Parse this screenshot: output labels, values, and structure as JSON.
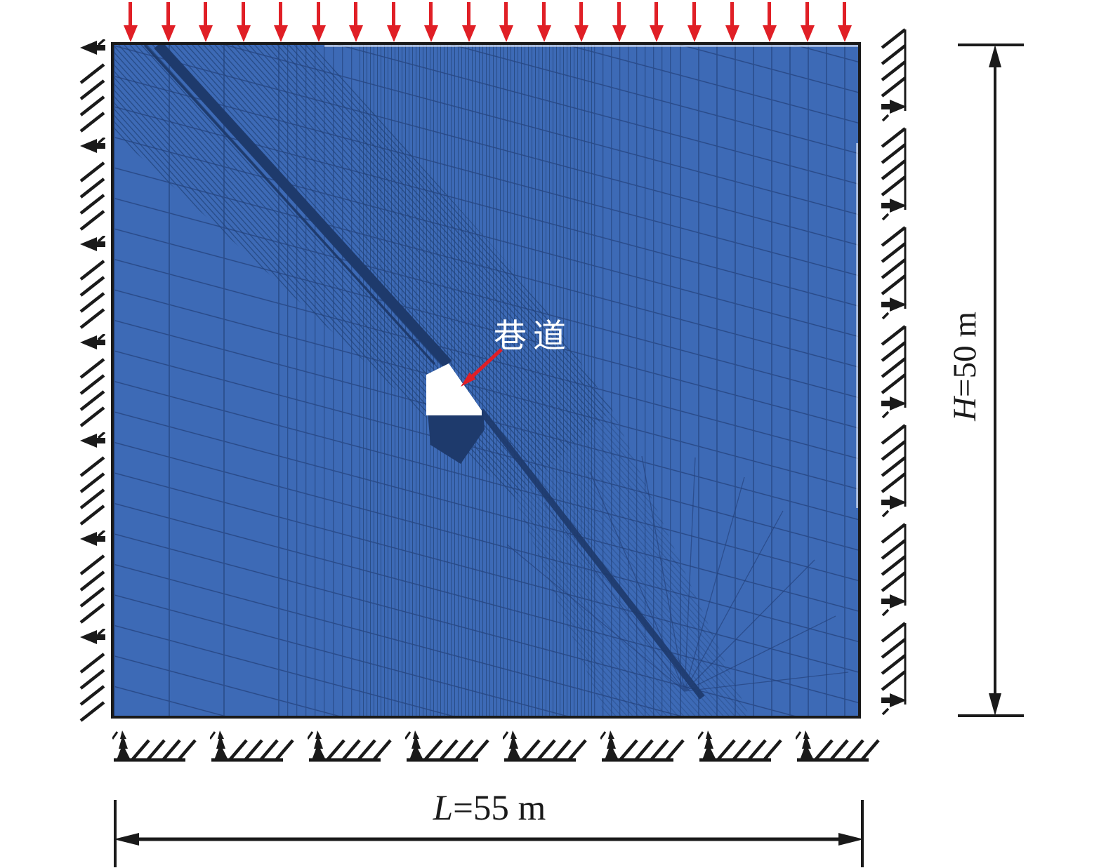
{
  "diagram": {
    "tunnel_label": "巷道",
    "dim_height": {
      "symbol": "H",
      "rest": "=50 m"
    },
    "dim_width": {
      "symbol": "L",
      "rest": "=55 m"
    }
  },
  "loads": {
    "count": 20,
    "direction": "down",
    "color": "#e01f26"
  },
  "supports": {
    "left_count": 7,
    "right_count": 7,
    "bottom_count": 8,
    "color": "#1a1a1a"
  },
  "mesh": {
    "base_color": "#3d6ab6",
    "grid_line_color": "#2a4d8c",
    "strata_line_color": "#23407a",
    "seam_color": "#1e3a6c",
    "tunnel_fill": "#ffffff",
    "border_color": "#1a1a1a"
  }
}
